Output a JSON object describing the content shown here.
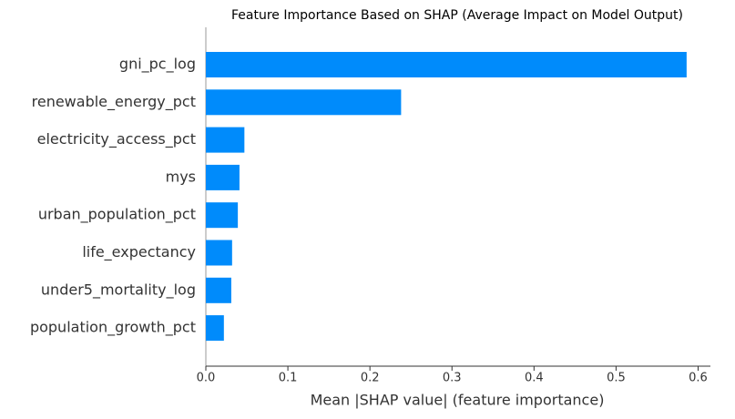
{
  "chart_data": {
    "type": "bar",
    "orientation": "horizontal",
    "title": "Feature Importance Based on SHAP (Average Impact on Model Output)",
    "x_label": "Mean |SHAP value| (feature importance)",
    "categories": [
      "gni_pc_log",
      "renewable_energy_pct",
      "electricity_access_pct",
      "mys",
      "urban_population_pct",
      "life_expectancy",
      "under5_mortality_log",
      "population_growth_pct"
    ],
    "values": [
      0.586,
      0.238,
      0.047,
      0.041,
      0.039,
      0.032,
      0.031,
      0.022
    ],
    "color": "#008bfb",
    "xlim": [
      0,
      0.615
    ],
    "xticks": [
      {
        "value": 0,
        "label": "0.0"
      },
      0.1,
      0.2,
      0.3,
      0.4,
      0.5,
      0.6
    ],
    "grid": false
  }
}
